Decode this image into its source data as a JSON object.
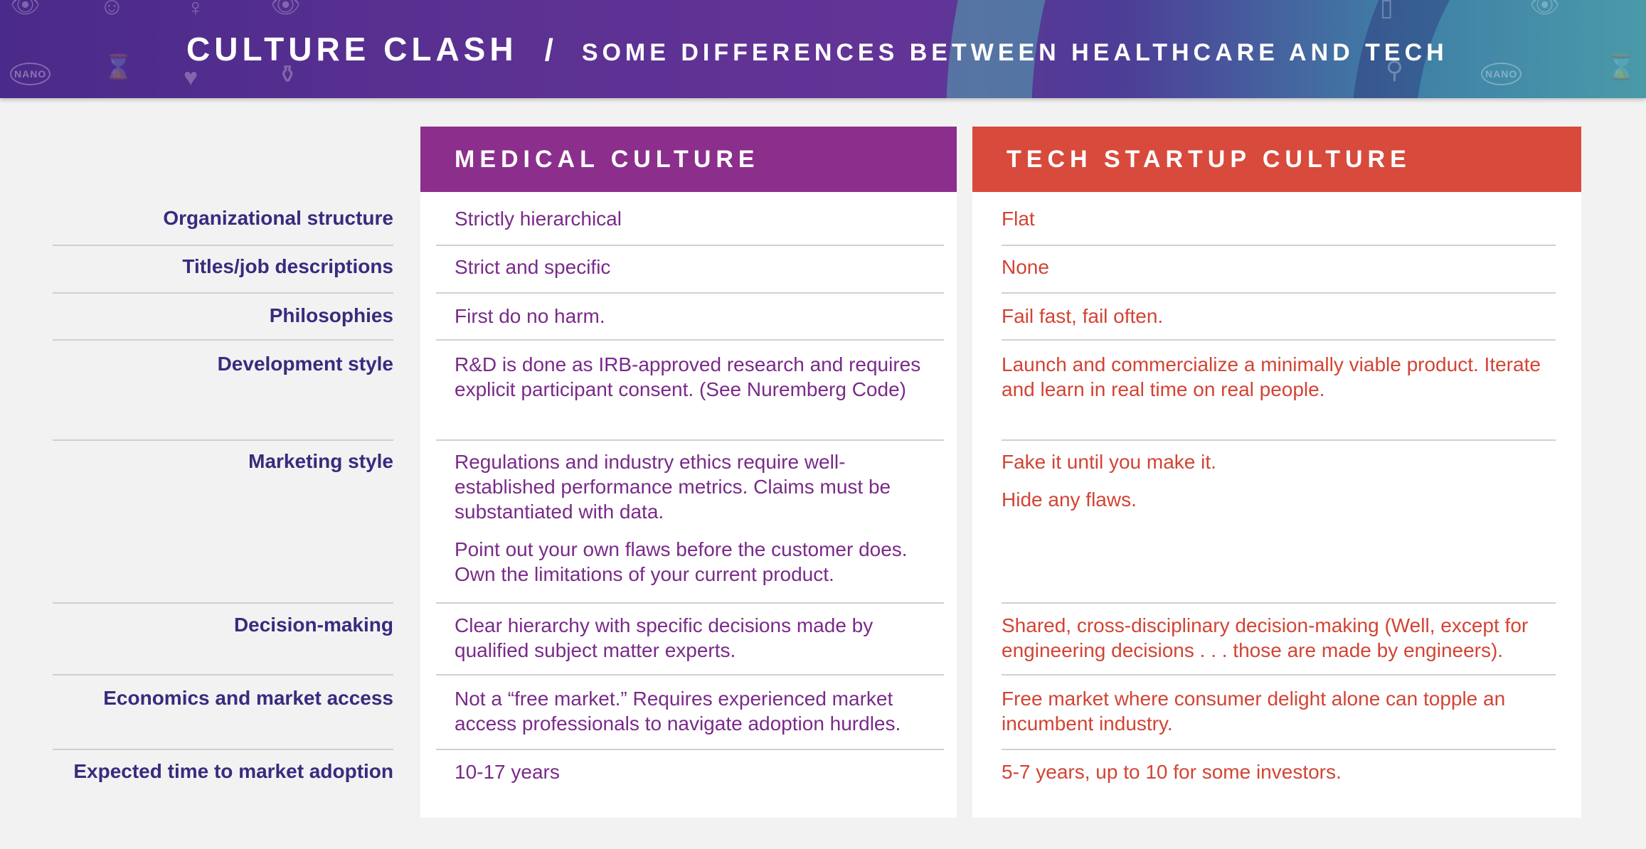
{
  "banner": {
    "title": "CULTURE CLASH",
    "separator": "/",
    "subtitle": "SOME DIFFERENCES BETWEEN HEALTHCARE AND TECH",
    "nano_label": "NANO"
  },
  "columns": {
    "medical": {
      "title": "MEDICAL CULTURE",
      "color": "#8c2f8c",
      "text_color": "#7a2a8a"
    },
    "tech": {
      "title": "TECH STARTUP CULTURE",
      "color": "#d84a3c",
      "text_color": "#d24434"
    }
  },
  "label_color": "#3a2a7e",
  "rows": [
    {
      "label": "Organizational structure",
      "medical": [
        "Strictly hierarchical"
      ],
      "tech": [
        "Flat"
      ]
    },
    {
      "label": "Titles/job descriptions",
      "medical": [
        "Strict and specific"
      ],
      "tech": [
        "None"
      ]
    },
    {
      "label": "Philosophies",
      "medical": [
        "First do no harm."
      ],
      "tech": [
        "Fail fast, fail often."
      ]
    },
    {
      "label": "Development style",
      "medical": [
        "R&D is done as IRB-approved research and requires explicit participant consent. (See Nuremberg Code)"
      ],
      "tech": [
        "Launch and commercialize a minimally viable product. Iterate and learn in real time on real people."
      ]
    },
    {
      "label": "Marketing style",
      "medical": [
        "Regulations and industry ethics require well-established performance metrics. Claims must be substantiated with data.",
        "Point out your own flaws before the customer does. Own the limitations of your current product."
      ],
      "tech": [
        "Fake it until you make it.",
        "Hide any flaws."
      ]
    },
    {
      "label": "Decision-making",
      "medical": [
        "Clear hierarchy with specific decisions made by qualified subject matter experts."
      ],
      "tech": [
        "Shared, cross-disciplinary decision-making (Well, except for engineering decisions . . . those are made by engineers)."
      ]
    },
    {
      "label": "Economics and market access",
      "medical": [
        "Not a “free market.” Requires experienced market access professionals to navigate adoption hurdles."
      ],
      "tech": [
        "Free market where consumer delight alone can topple an incumbent industry."
      ]
    },
    {
      "label": "Expected time to market adoption",
      "medical": [
        "10-17 years"
      ],
      "tech": [
        "5-7 years, up to 10 for some investors."
      ]
    }
  ]
}
